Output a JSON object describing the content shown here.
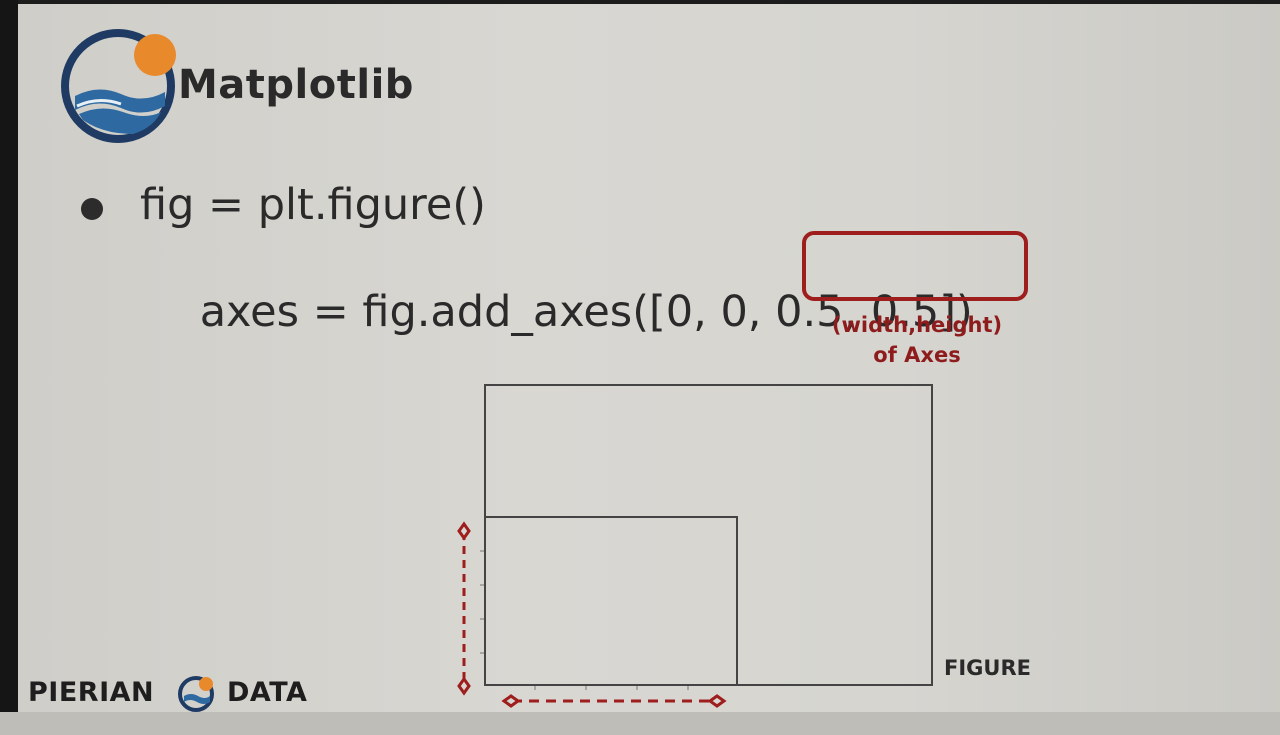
{
  "slide": {
    "title": "Matplotlib",
    "code_line1": "fig = plt.figure()",
    "code_line2_prefix": "axes = fig.add_axes([0, 0, ",
    "code_line2_highlight": "0.5, 0.5])",
    "annotation_line1": "(width,height)",
    "annotation_line2": "of Axes",
    "figure_label": "FIGURE",
    "footer_left": "PIERIAN",
    "footer_right": "DATA",
    "colors": {
      "highlight": "#9e1d1d",
      "logo_orange": "#e8892b",
      "logo_navy": "#1f3b63",
      "logo_blue": "#2e6aa1"
    }
  }
}
